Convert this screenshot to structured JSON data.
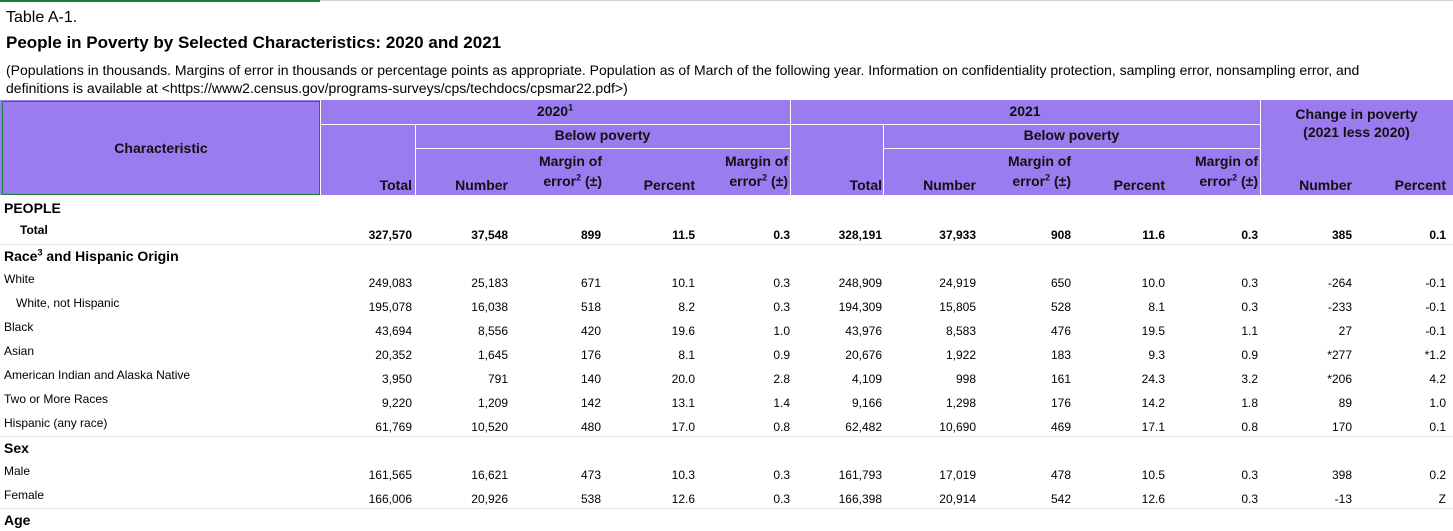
{
  "table_id": "Table A-1.",
  "title": "People in Poverty by Selected Characteristics: 2020 and 2021",
  "note_line1": "(Populations in thousands. Margins of error in thousands or percentage points as appropriate. Population as of March of the following year. Information on confidentiality protection, sampling error, nonsampling error, and",
  "note_line2": "definitions is available at <https://www2.census.gov/programs-surveys/cps/techdocs/cpsmar22.pdf>)",
  "header": {
    "characteristic": "Characteristic",
    "year1": "2020",
    "year1_sup": "1",
    "year2": "2021",
    "below_poverty": "Below poverty",
    "change_line1": "Change in poverty",
    "change_line2": "(2021 less 2020)",
    "total": "Total",
    "number": "Number",
    "moe_line1": "Margin of",
    "moe_line2": "error",
    "moe_sup": "2",
    "moe_suffix": " (±)",
    "percent": "Percent"
  },
  "sections": {
    "people": "PEOPLE",
    "race": "Race",
    "race_sup": "3",
    "race_suffix": " and Hispanic Origin",
    "sex": "Sex",
    "age": "Age"
  },
  "rows": {
    "total": {
      "label": "Total",
      "values": [
        "327,570",
        "37,548",
        "899",
        "11.5",
        "0.3",
        "328,191",
        "37,933",
        "908",
        "11.6",
        "0.3",
        "385",
        "0.1"
      ]
    },
    "white": {
      "label": "White",
      "values": [
        "249,083",
        "25,183",
        "671",
        "10.1",
        "0.3",
        "248,909",
        "24,919",
        "650",
        "10.0",
        "0.3",
        "-264",
        "-0.1"
      ]
    },
    "white_nh": {
      "label": "White, not Hispanic",
      "values": [
        "195,078",
        "16,038",
        "518",
        "8.2",
        "0.3",
        "194,309",
        "15,805",
        "528",
        "8.1",
        "0.3",
        "-233",
        "-0.1"
      ]
    },
    "black": {
      "label": "Black",
      "values": [
        "43,694",
        "8,556",
        "420",
        "19.6",
        "1.0",
        "43,976",
        "8,583",
        "476",
        "19.5",
        "1.1",
        "27",
        "-0.1"
      ]
    },
    "asian": {
      "label": "Asian",
      "values": [
        "20,352",
        "1,645",
        "176",
        "8.1",
        "0.9",
        "20,676",
        "1,922",
        "183",
        "9.3",
        "0.9",
        "*277",
        "*1.2"
      ]
    },
    "aian": {
      "label": "American Indian and Alaska Native",
      "values": [
        "3,950",
        "791",
        "140",
        "20.0",
        "2.8",
        "4,109",
        "998",
        "161",
        "24.3",
        "3.2",
        "*206",
        "4.2"
      ]
    },
    "two": {
      "label": "Two or More Races",
      "values": [
        "9,220",
        "1,209",
        "142",
        "13.1",
        "1.4",
        "9,166",
        "1,298",
        "176",
        "14.2",
        "1.8",
        "89",
        "1.0"
      ]
    },
    "hispanic": {
      "label": "Hispanic (any race)",
      "values": [
        "61,769",
        "10,520",
        "480",
        "17.0",
        "0.8",
        "62,482",
        "10,690",
        "469",
        "17.1",
        "0.8",
        "170",
        "0.1"
      ]
    },
    "male": {
      "label": "Male",
      "values": [
        "161,565",
        "16,621",
        "473",
        "10.3",
        "0.3",
        "161,793",
        "17,019",
        "478",
        "10.5",
        "0.3",
        "398",
        "0.2"
      ]
    },
    "female": {
      "label": "Female",
      "values": [
        "166,006",
        "20,926",
        "538",
        "12.6",
        "0.3",
        "166,398",
        "20,914",
        "542",
        "12.6",
        "0.3",
        "-13",
        "Z"
      ]
    }
  },
  "colors": {
    "header_bg": "#9b7cf0",
    "selection_border": "#1e7b3a"
  }
}
